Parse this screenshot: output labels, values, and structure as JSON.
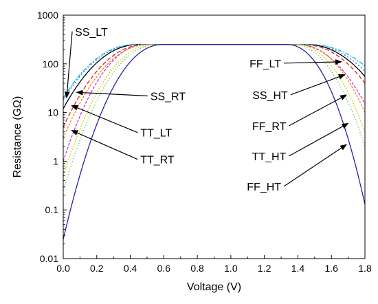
{
  "chart_data": {
    "type": "line",
    "xlabel": "Voltage (V)",
    "ylabel": "Resistance (GΩ)",
    "xlim": [
      0.0,
      1.8
    ],
    "ylim": [
      0.01,
      1000
    ],
    "ylog": true,
    "grid": false,
    "x_ticks": [
      0.0,
      0.2,
      0.4,
      0.6,
      0.8,
      1.0,
      1.2,
      1.4,
      1.6,
      1.8
    ],
    "x_tick_labels": [
      "0.0",
      "0.2",
      "0.4",
      "0.6",
      "0.8",
      "1.0",
      "1.2",
      "1.4",
      "1.6",
      "1.8"
    ],
    "y_ticks": [
      0.01,
      0.1,
      1,
      10,
      100,
      1000
    ],
    "y_tick_labels": [
      "0.01",
      "0.1",
      "1",
      "10",
      "100",
      "1000"
    ],
    "plateau": 250,
    "series": [
      {
        "name": "SS_LT",
        "color": "#1f77ff",
        "dash": "2,3",
        "left": 18,
        "left_knee": 0.45,
        "right_knee": 1.45,
        "right": 70
      },
      {
        "name": "SS_RT",
        "color": "#e01f1f",
        "dash": "6,3",
        "left": 5,
        "left_knee": 0.5,
        "right_knee": 1.42,
        "right": 40
      },
      {
        "name": "TT_LT",
        "color": "#000000",
        "dash": "",
        "left": 12,
        "left_knee": 0.46,
        "right_knee": 1.44,
        "right": 55
      },
      {
        "name": "TT_RT",
        "color": "#cc33cc",
        "dash": "4,2",
        "left": 1,
        "left_knee": 0.5,
        "right_knee": 1.38,
        "right": 15
      },
      {
        "name": "FF_LT",
        "color": "#00b0e0",
        "dash": "6,2,2,2",
        "left": 20,
        "left_knee": 0.44,
        "right_knee": 1.46,
        "right": 90
      },
      {
        "name": "SS_HT",
        "color": "#ff7f0e",
        "dash": "3,2",
        "left": 3,
        "left_knee": 0.52,
        "right_knee": 1.4,
        "right": 10
      },
      {
        "name": "FF_RT",
        "color": "#d4d400",
        "dash": "2,2",
        "left": 0.5,
        "left_knee": 0.55,
        "right_knee": 1.38,
        "right": 4
      },
      {
        "name": "TT_HT",
        "color": "#33aa33",
        "dash": "1,3",
        "left": 0.25,
        "left_knee": 0.57,
        "right_knee": 1.36,
        "right": 2
      },
      {
        "name": "FF_HT",
        "color": "#2222aa",
        "dash": "",
        "left": 0.025,
        "left_knee": 0.6,
        "right_knee": 1.33,
        "right": 0.13
      }
    ],
    "annotations": [
      {
        "label": "SS_LT",
        "text_v": 0.07,
        "text_r": 380,
        "arrow_v": 0.02,
        "arrow_r": 20
      },
      {
        "label": "SS_RT",
        "text_v": 0.52,
        "text_r": 18,
        "arrow_v": 0.08,
        "arrow_r": 26
      },
      {
        "label": "TT_LT",
        "text_v": 0.46,
        "text_r": 3.2,
        "arrow_v": 0.05,
        "arrow_r": 14
      },
      {
        "label": "TT_RT",
        "text_v": 0.46,
        "text_r": 0.9,
        "arrow_v": 0.05,
        "arrow_r": 4.3
      },
      {
        "label": "FF_LT",
        "text_v": 1.3,
        "text_r": 85,
        "arrow_v": 1.66,
        "arrow_r": 110
      },
      {
        "label": "SS_HT",
        "text_v": 1.34,
        "text_r": 19,
        "arrow_v": 1.68,
        "arrow_r": 60
      },
      {
        "label": "FF_RT",
        "text_v": 1.33,
        "text_r": 4.4,
        "arrow_v": 1.69,
        "arrow_r": 23
      },
      {
        "label": "TT_HT",
        "text_v": 1.33,
        "text_r": 1.05,
        "arrow_v": 1.7,
        "arrow_r": 6
      },
      {
        "label": "FF_HT",
        "text_v": 1.3,
        "text_r": 0.25,
        "arrow_v": 1.69,
        "arrow_r": 2.2
      }
    ]
  }
}
